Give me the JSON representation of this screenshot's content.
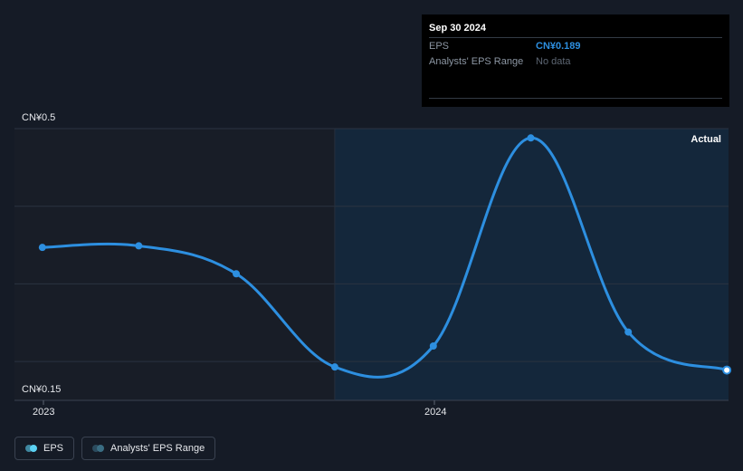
{
  "tooltip": {
    "date": "Sep 30 2024",
    "rows": [
      {
        "label": "EPS",
        "value": "CN¥0.189"
      },
      {
        "label": "Analysts' EPS Range",
        "value": "No data"
      }
    ]
  },
  "colors": {
    "eps_line": "#2d8fe0",
    "eps_value_text": "#2d8fe0",
    "past_bg": "#151b26",
    "actual_bg": "#14273b",
    "legend_eps_dot": "#5bd1f2",
    "legend_range_dot": "#3a6d83"
  },
  "chart_data": {
    "type": "line",
    "series": [
      {
        "name": "EPS",
        "x": [
          "2022-12-31",
          "2023-03-31",
          "2023-06-30",
          "2023-09-30",
          "2023-12-31",
          "2024-03-31",
          "2024-06-30",
          "2024-09-30"
        ],
        "values": [
          0.347,
          0.349,
          0.313,
          0.193,
          0.22,
          0.488,
          0.238,
          0.189
        ]
      }
    ],
    "ylim": [
      0.15,
      0.5
    ],
    "y_tick_labels": [
      "CN¥0.5",
      "CN¥0.15"
    ],
    "x_tick_labels": [
      "2023",
      "2024"
    ],
    "region_label": "Actual",
    "grid": true
  },
  "legend": {
    "items": [
      {
        "label": "EPS"
      },
      {
        "label": "Analysts' EPS Range"
      }
    ]
  }
}
